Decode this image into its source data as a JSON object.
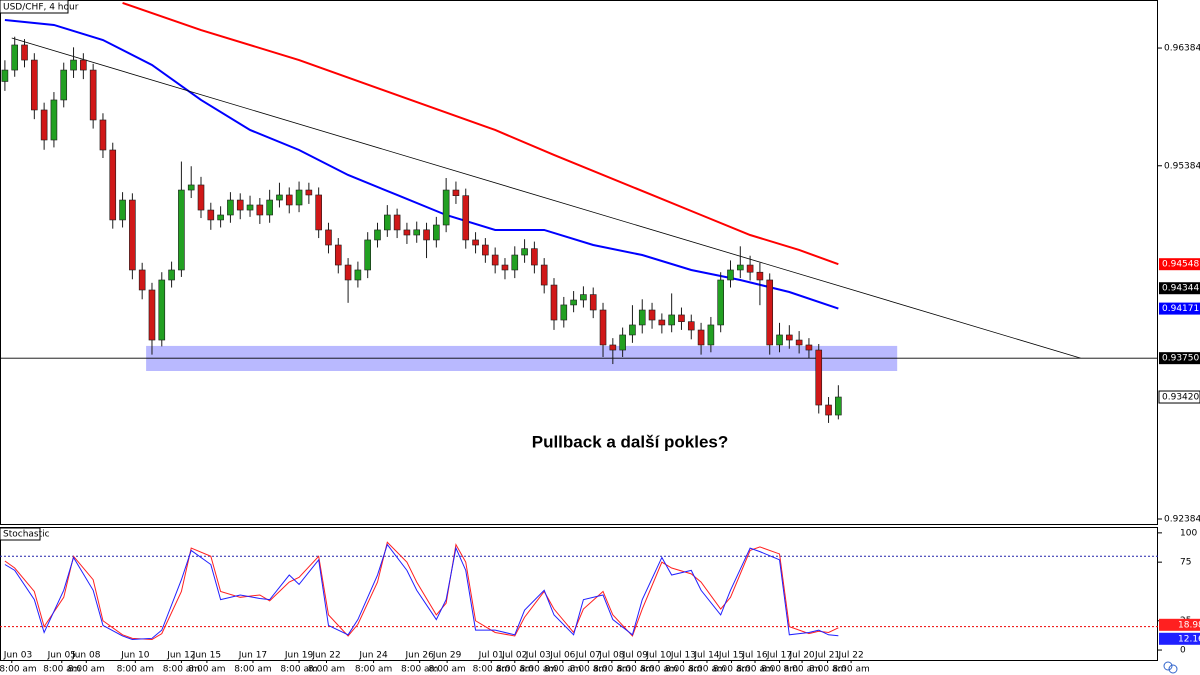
{
  "chart_data": {
    "type": "candlestick",
    "title": "USD/CHF, 4 hour",
    "annotation": "Pullback a další pokles?",
    "colors": {
      "up": "#22a022",
      "down": "#d01818",
      "outline": "#1a1a1a"
    },
    "xlim": [
      -0.5,
      117.6
    ],
    "xticks": [
      {
        "value": 0.7,
        "label": "Jun 03"
      },
      {
        "value": 5.8,
        "label": "Jun 05"
      },
      {
        "value": 8.3,
        "label": "Jun 08"
      },
      {
        "value": 13.3,
        "label": "Jun 10"
      },
      {
        "value": 18,
        "label": "Jun 12"
      },
      {
        "value": 20.6,
        "label": "Jun 15"
      },
      {
        "value": 25.3,
        "label": "Jun 17"
      },
      {
        "value": 30,
        "label": "Jun 19"
      },
      {
        "value": 32.8,
        "label": "Jun 22"
      },
      {
        "value": 37.6,
        "label": "Jun 24"
      },
      {
        "value": 42.3,
        "label": "Jun 26"
      },
      {
        "value": 45.1,
        "label": "Jun 29"
      },
      {
        "value": 49.6,
        "label": "Jul 01"
      },
      {
        "value": 52,
        "label": "Jul 02"
      },
      {
        "value": 54.4,
        "label": "Jul 03"
      },
      {
        "value": 56.9,
        "label": "Jul 06"
      },
      {
        "value": 59.5,
        "label": "Jul 07"
      },
      {
        "value": 61.9,
        "label": "Jul 08"
      },
      {
        "value": 64.3,
        "label": "Jul 09"
      },
      {
        "value": 66.7,
        "label": "Jul 10"
      },
      {
        "value": 69.2,
        "label": "Jul 13"
      },
      {
        "value": 71.6,
        "label": "Jul 14"
      },
      {
        "value": 74.1,
        "label": "Jul 15"
      },
      {
        "value": 76.5,
        "label": "Jul 16"
      },
      {
        "value": 79,
        "label": "Jul 17"
      },
      {
        "value": 81.3,
        "label": "Jul 20"
      },
      {
        "value": 83.9,
        "label": "Jul 21"
      },
      {
        "value": 86.3,
        "label": "Jul 22"
      }
    ],
    "xtick_sublabel": "8:00 am",
    "ylim": [
      0.92333,
      0.96792
    ],
    "yticks": [
      0.96384,
      0.95384,
      0.92384
    ],
    "price_markers": [
      {
        "value": 0.94548,
        "color": "#ff0000"
      },
      {
        "value": 0.94344,
        "color": "#000000"
      },
      {
        "value": 0.94171,
        "color": "#0000ff"
      },
      {
        "value": 0.9375,
        "label": "0.93750",
        "color": "#000000"
      },
      {
        "value": 0.9342,
        "label": "0.93420",
        "color": "#ffffff"
      }
    ],
    "open": [
      0.961,
      0.96197,
      0.9641,
      0.96282,
      0.95858,
      0.95603,
      0.95943,
      0.96197,
      0.96282,
      0.96197,
      0.95773,
      0.95518,
      0.94924,
      0.95093,
      0.94499,
      0.94329,
      0.93904,
      0.94414,
      0.94499,
      0.95178,
      0.95221,
      0.95008,
      0.94924,
      0.94966,
      0.95093,
      0.95008,
      0.95051,
      0.94966,
      0.95093,
      0.95136,
      0.95051,
      0.95178,
      0.95136,
      0.94839,
      0.94711,
      0.94541,
      0.94414,
      0.94499,
      0.94754,
      0.94839,
      0.94966,
      0.94839,
      0.94796,
      0.9484,
      0.94754,
      0.94881,
      0.95178,
      0.9513,
      0.94754,
      0.94711,
      0.94626,
      0.94541,
      0.94499,
      0.94626,
      0.9468,
      0.94541,
      0.94371,
      0.94074,
      0.94202,
      0.94244,
      0.9429,
      0.94159,
      0.93862,
      0.93819,
      0.93947,
      0.94032,
      0.94159,
      0.94074,
      0.94032,
      0.94117,
      0.9406,
      0.93989,
      0.93862,
      0.94032,
      0.94414,
      0.94499,
      0.94541,
      0.9448,
      0.94414,
      0.93862,
      0.93947,
      0.93904,
      0.93862,
      0.93819,
      0.93352,
      0.93267
    ],
    "high": [
      0.9628,
      0.9648,
      0.9646,
      0.9634,
      0.9592,
      0.9601,
      0.9626,
      0.9639,
      0.9634,
      0.9625,
      0.9583,
      0.9558,
      0.9516,
      0.9515,
      0.9456,
      0.9439,
      0.9448,
      0.9457,
      0.9542,
      0.9538,
      0.9529,
      0.9507,
      0.9504,
      0.9516,
      0.9515,
      0.9513,
      0.9511,
      0.9518,
      0.9524,
      0.952,
      0.9525,
      0.9524,
      0.952,
      0.949,
      0.9477,
      0.946,
      0.9457,
      0.9482,
      0.949,
      0.9505,
      0.9502,
      0.949,
      0.9491,
      0.949,
      0.9495,
      0.9528,
      0.9525,
      0.9519,
      0.9482,
      0.9477,
      0.9469,
      0.946,
      0.947,
      0.9476,
      0.9474,
      0.946,
      0.9443,
      0.9427,
      0.9432,
      0.9436,
      0.9435,
      0.9422,
      0.9392,
      0.9401,
      0.942,
      0.9425,
      0.9422,
      0.9413,
      0.943,
      0.9418,
      0.9412,
      0.9405,
      0.941,
      0.9448,
      0.9458,
      0.947,
      0.9462,
      0.9456,
      0.9447,
      0.9405,
      0.9403,
      0.9398,
      0.9392,
      0.9387,
      0.9342,
      0.9352
    ],
    "low": [
      0.9602,
      0.9614,
      0.9622,
      0.9578,
      0.9552,
      0.9554,
      0.9588,
      0.9613,
      0.9612,
      0.957,
      0.9545,
      0.9485,
      0.9486,
      0.9442,
      0.9425,
      0.9378,
      0.9385,
      0.9435,
      0.9444,
      0.9511,
      0.9494,
      0.9484,
      0.9486,
      0.949,
      0.9493,
      0.9495,
      0.9489,
      0.949,
      0.9503,
      0.9498,
      0.9499,
      0.9506,
      0.9477,
      0.9464,
      0.9447,
      0.9422,
      0.9435,
      0.9443,
      0.9469,
      0.9478,
      0.9477,
      0.9472,
      0.9473,
      0.946,
      0.9469,
      0.9482,
      0.9506,
      0.9468,
      0.9464,
      0.9456,
      0.9447,
      0.9442,
      0.9443,
      0.9456,
      0.9447,
      0.943,
      0.9399,
      0.9401,
      0.9414,
      0.9418,
      0.9409,
      0.9376,
      0.937,
      0.9376,
      0.9388,
      0.9396,
      0.94,
      0.9396,
      0.9397,
      0.9399,
      0.9391,
      0.9378,
      0.938,
      0.9397,
      0.9435,
      0.9443,
      0.9441,
      0.942,
      0.9378,
      0.938,
      0.9383,
      0.9379,
      0.9375,
      0.9328,
      0.932,
      0.9323
    ],
    "close": [
      0.96197,
      0.9641,
      0.96282,
      0.95858,
      0.95603,
      0.95943,
      0.96197,
      0.96282,
      0.96197,
      0.95773,
      0.95518,
      0.94924,
      0.95093,
      0.94499,
      0.94329,
      0.93904,
      0.94414,
      0.94499,
      0.95178,
      0.95221,
      0.95008,
      0.94924,
      0.94966,
      0.95093,
      0.95008,
      0.95051,
      0.94966,
      0.95093,
      0.95136,
      0.95051,
      0.95178,
      0.95136,
      0.94839,
      0.94711,
      0.94541,
      0.94414,
      0.94499,
      0.94754,
      0.94839,
      0.94966,
      0.94839,
      0.94796,
      0.9484,
      0.94754,
      0.94881,
      0.95178,
      0.9513,
      0.94754,
      0.94711,
      0.94626,
      0.94541,
      0.94499,
      0.94626,
      0.9468,
      0.94541,
      0.94371,
      0.94074,
      0.94202,
      0.94244,
      0.9429,
      0.94159,
      0.93862,
      0.93819,
      0.93947,
      0.94032,
      0.94159,
      0.94074,
      0.94032,
      0.94117,
      0.9406,
      0.93989,
      0.93862,
      0.94032,
      0.94414,
      0.94499,
      0.94541,
      0.9448,
      0.94414,
      0.93862,
      0.93947,
      0.93904,
      0.93862,
      0.93819,
      0.93352,
      0.93267,
      0.9342
    ],
    "moving_averages": [
      {
        "color": "#ff0000",
        "x": [
          12,
          20,
          30,
          40,
          50,
          56,
          66,
          71,
          76,
          81,
          85
        ],
        "values": [
          0.96767,
          0.96537,
          0.96282,
          0.95985,
          0.95688,
          0.95476,
          0.95136,
          0.94966,
          0.94796,
          0.94669,
          0.94548
        ]
      },
      {
        "color": "#0000ff",
        "x": [
          0,
          5,
          10,
          15,
          20,
          25,
          30,
          35,
          40,
          45,
          50,
          55,
          60,
          65,
          70,
          75,
          80,
          85
        ],
        "values": [
          0.96622,
          0.9658,
          0.96452,
          0.9624,
          0.95943,
          0.95688,
          0.95518,
          0.95306,
          0.95136,
          0.94966,
          0.94839,
          0.94839,
          0.94711,
          0.94626,
          0.94499,
          0.94414,
          0.94312,
          0.94171
        ]
      }
    ],
    "trendline": {
      "x": [
        0.7,
        109.7
      ],
      "values": [
        0.96469,
        0.9375
      ]
    },
    "support_line": 0.9375,
    "support_zone": {
      "x": [
        14.4,
        91
      ],
      "values": [
        0.93854,
        0.93641
      ],
      "color": "#8080ff"
    },
    "stochastic": {
      "title": "Stochastic",
      "ylim": [
        -8.5,
        105
      ],
      "yticks": [
        100,
        75,
        25,
        0
      ],
      "levels": [
        80,
        20
      ],
      "x": [
        0,
        1,
        3,
        4,
        6,
        7,
        9,
        10,
        12,
        13,
        15,
        16,
        18,
        19,
        21,
        22,
        24,
        26,
        27,
        29,
        30,
        32,
        33,
        35,
        36,
        38,
        39,
        41,
        42,
        44,
        45,
        46,
        47,
        48,
        50,
        52,
        53,
        55,
        56,
        58,
        59,
        61,
        62,
        64,
        65,
        67,
        68,
        70,
        71,
        73,
        74,
        76,
        77,
        79,
        80,
        82,
        83,
        84,
        85
      ],
      "series": [
        {
          "color": "#ff2020",
          "values": [
            76,
            70,
            50,
            20,
            45,
            80,
            60,
            25,
            13,
            10,
            9,
            14,
            50,
            87,
            80,
            50,
            45,
            47,
            42,
            58,
            62,
            80,
            30,
            12,
            22,
            58,
            92,
            75,
            58,
            30,
            40,
            90,
            75,
            25,
            15,
            12,
            28,
            50,
            35,
            15,
            35,
            50,
            30,
            12,
            35,
            75,
            70,
            65,
            58,
            35,
            45,
            85,
            88,
            82,
            20,
            14,
            16,
            15,
            18.98
          ]
        },
        {
          "color": "#2020ff",
          "values": [
            73,
            68,
            43,
            15,
            51,
            79,
            51,
            21,
            12,
            9,
            10,
            17,
            60,
            85,
            73,
            43,
            47,
            44,
            43,
            64,
            56,
            77,
            21,
            13,
            26,
            64,
            90,
            68,
            51,
            26,
            43,
            87,
            68,
            17,
            17,
            13,
            34,
            51,
            30,
            13,
            43,
            47,
            26,
            13,
            43,
            79,
            64,
            68,
            51,
            30,
            51,
            87,
            84,
            77,
            13,
            15,
            17,
            13,
            12.16
          ]
        }
      ]
    }
  }
}
